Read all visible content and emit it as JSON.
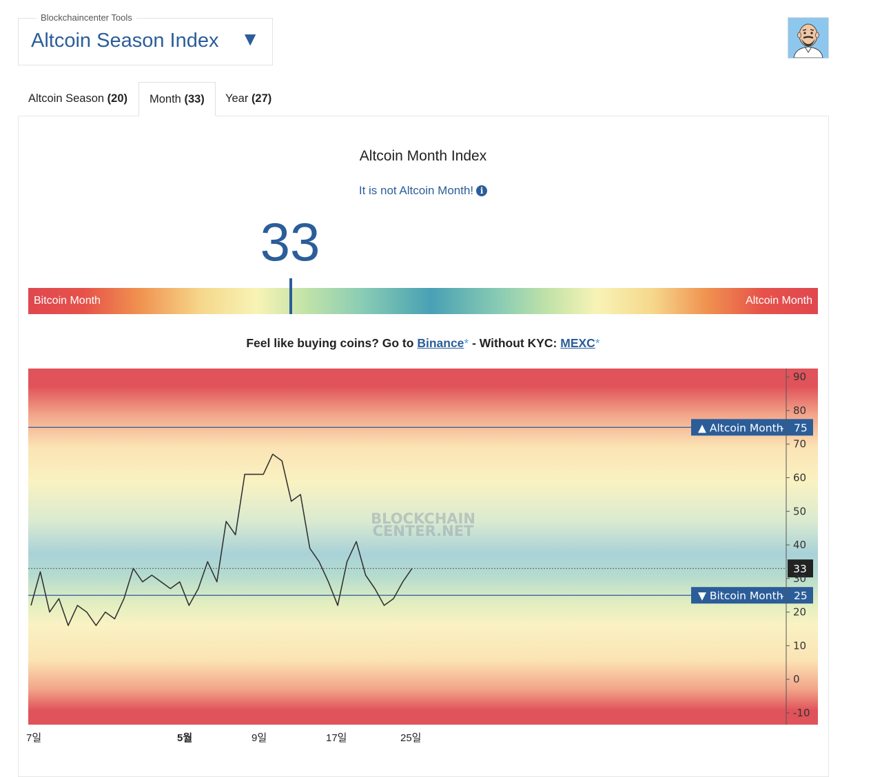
{
  "header": {
    "caption": "Blockchaincenter Tools",
    "title": "Altcoin Season Index",
    "dropdown_icon": "caret-down-icon"
  },
  "tabs": [
    {
      "label": "Altcoin Season",
      "count": "(20)",
      "active": false
    },
    {
      "label": "Month",
      "count": "(33)",
      "active": true
    },
    {
      "label": "Year",
      "count": "(27)",
      "active": false
    }
  ],
  "index": {
    "title": "Altcoin Month Index",
    "status": "It is not Altcoin Month!",
    "value": "33",
    "value_fraction": 0.33,
    "gauge_left_label": "Bitcoin Month",
    "gauge_right_label": "Altcoin Month"
  },
  "promo": {
    "text1": "Feel like buying coins? Go to",
    "link1": "Binance",
    "asterisk": "*",
    "text2": "- Without KYC:",
    "link2": "MEXC"
  },
  "chart_data": {
    "type": "line",
    "watermark": "BLOCKCHAIN CENTER.NET",
    "ylim": [
      -15,
      90
    ],
    "y_ticks": [
      90,
      80,
      70,
      60,
      50,
      40,
      30,
      20,
      10,
      0,
      -10
    ],
    "x_ticks": [
      {
        "label": "7일",
        "pos": 0.0,
        "bold": false
      },
      {
        "label": "5월",
        "pos": 0.18,
        "bold": true
      },
      {
        "label": "9일",
        "pos": 0.27,
        "bold": false
      },
      {
        "label": "17일",
        "pos": 0.36,
        "bold": false
      },
      {
        "label": "25일",
        "pos": 0.45,
        "bold": false
      }
    ],
    "thresholds": [
      {
        "label": "▲ Altcoin Month",
        "value": 75,
        "value_label": "75"
      },
      {
        "label": "▼ Bitcoin Month",
        "value": 25,
        "value_label": "25"
      }
    ],
    "current": {
      "value": 33,
      "label": "33"
    },
    "series": [
      {
        "values": [
          22,
          32,
          20,
          24,
          16,
          22,
          20,
          16,
          20,
          18,
          24,
          33,
          29,
          31,
          29,
          27,
          29,
          22,
          27,
          35,
          29,
          47,
          43,
          61,
          61,
          61,
          67,
          65,
          53,
          55,
          39,
          35,
          29,
          22,
          35,
          41,
          31,
          27,
          22,
          24,
          29,
          33
        ]
      }
    ]
  }
}
